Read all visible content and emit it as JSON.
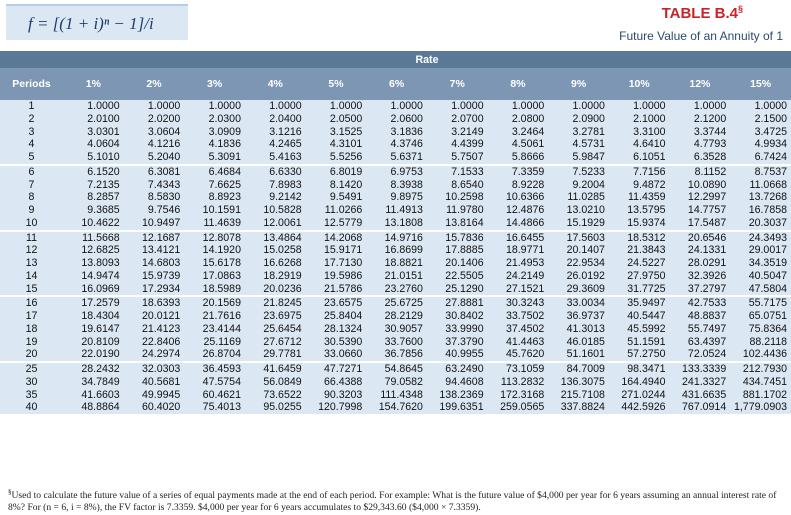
{
  "header": {
    "formula": "f = [(1 + i)ⁿ − 1]/i",
    "title": "TABLE B.4",
    "title_mark": "§",
    "subtitle": "Future Value of an Annuity of 1"
  },
  "table": {
    "group_header": "Rate",
    "columns": [
      "Periods",
      "1%",
      "2%",
      "3%",
      "4%",
      "5%",
      "6%",
      "7%",
      "8%",
      "9%",
      "10%",
      "12%",
      "15%"
    ],
    "rows": [
      [
        "1",
        "1.0000",
        "1.0000",
        "1.0000",
        "1.0000",
        "1.0000",
        "1.0000",
        "1.0000",
        "1.0000",
        "1.0000",
        "1.0000",
        "1.0000",
        "1.0000"
      ],
      [
        "2",
        "2.0100",
        "2.0200",
        "2.0300",
        "2.0400",
        "2.0500",
        "2.0600",
        "2.0700",
        "2.0800",
        "2.0900",
        "2.1000",
        "2.1200",
        "2.1500"
      ],
      [
        "3",
        "3.0301",
        "3.0604",
        "3.0909",
        "3.1216",
        "3.1525",
        "3.1836",
        "3.2149",
        "3.2464",
        "3.2781",
        "3.3100",
        "3.3744",
        "3.4725"
      ],
      [
        "4",
        "4.0604",
        "4.1216",
        "4.1836",
        "4.2465",
        "4.3101",
        "4.3746",
        "4.4399",
        "4.5061",
        "4.5731",
        "4.6410",
        "4.7793",
        "4.9934"
      ],
      [
        "5",
        "5.1010",
        "5.2040",
        "5.3091",
        "5.4163",
        "5.5256",
        "5.6371",
        "5.7507",
        "5.8666",
        "5.9847",
        "6.1051",
        "6.3528",
        "6.7424"
      ],
      [
        "6",
        "6.1520",
        "6.3081",
        "6.4684",
        "6.6330",
        "6.8019",
        "6.9753",
        "7.1533",
        "7.3359",
        "7.5233",
        "7.7156",
        "8.1152",
        "8.7537"
      ],
      [
        "7",
        "7.2135",
        "7.4343",
        "7.6625",
        "7.8983",
        "8.1420",
        "8.3938",
        "8.6540",
        "8.9228",
        "9.2004",
        "9.4872",
        "10.0890",
        "11.0668"
      ],
      [
        "8",
        "8.2857",
        "8.5830",
        "8.8923",
        "9.2142",
        "9.5491",
        "9.8975",
        "10.2598",
        "10.6366",
        "11.0285",
        "11.4359",
        "12.2997",
        "13.7268"
      ],
      [
        "9",
        "9.3685",
        "9.7546",
        "10.1591",
        "10.5828",
        "11.0266",
        "11.4913",
        "11.9780",
        "12.4876",
        "13.0210",
        "13.5795",
        "14.7757",
        "16.7858"
      ],
      [
        "10",
        "10.4622",
        "10.9497",
        "11.4639",
        "12.0061",
        "12.5779",
        "13.1808",
        "13.8164",
        "14.4866",
        "15.1929",
        "15.9374",
        "17.5487",
        "20.3037"
      ],
      [
        "11",
        "11.5668",
        "12.1687",
        "12.8078",
        "13.4864",
        "14.2068",
        "14.9716",
        "15.7836",
        "16.6455",
        "17.5603",
        "18.5312",
        "20.6546",
        "24.3493"
      ],
      [
        "12",
        "12.6825",
        "13.4121",
        "14.1920",
        "15.0258",
        "15.9171",
        "16.8699",
        "17.8885",
        "18.9771",
        "20.1407",
        "21.3843",
        "24.1331",
        "29.0017"
      ],
      [
        "13",
        "13.8093",
        "14.6803",
        "15.6178",
        "16.6268",
        "17.7130",
        "18.8821",
        "20.1406",
        "21.4953",
        "22.9534",
        "24.5227",
        "28.0291",
        "34.3519"
      ],
      [
        "14",
        "14.9474",
        "15.9739",
        "17.0863",
        "18.2919",
        "19.5986",
        "21.0151",
        "22.5505",
        "24.2149",
        "26.0192",
        "27.9750",
        "32.3926",
        "40.5047"
      ],
      [
        "15",
        "16.0969",
        "17.2934",
        "18.5989",
        "20.0236",
        "21.5786",
        "23.2760",
        "25.1290",
        "27.1521",
        "29.3609",
        "31.7725",
        "37.2797",
        "47.5804"
      ],
      [
        "16",
        "17.2579",
        "18.6393",
        "20.1569",
        "21.8245",
        "23.6575",
        "25.6725",
        "27.8881",
        "30.3243",
        "33.0034",
        "35.9497",
        "42.7533",
        "55.7175"
      ],
      [
        "17",
        "18.4304",
        "20.0121",
        "21.7616",
        "23.6975",
        "25.8404",
        "28.2129",
        "30.8402",
        "33.7502",
        "36.9737",
        "40.5447",
        "48.8837",
        "65.0751"
      ],
      [
        "18",
        "19.6147",
        "21.4123",
        "23.4144",
        "25.6454",
        "28.1324",
        "30.9057",
        "33.9990",
        "37.4502",
        "41.3013",
        "45.5992",
        "55.7497",
        "75.8364"
      ],
      [
        "19",
        "20.8109",
        "22.8406",
        "25.1169",
        "27.6712",
        "30.5390",
        "33.7600",
        "37.3790",
        "41.4463",
        "46.0185",
        "51.1591",
        "63.4397",
        "88.2118"
      ],
      [
        "20",
        "22.0190",
        "24.2974",
        "26.8704",
        "29.7781",
        "33.0660",
        "36.7856",
        "40.9955",
        "45.7620",
        "51.1601",
        "57.2750",
        "72.0524",
        "102.4436"
      ],
      [
        "25",
        "28.2432",
        "32.0303",
        "36.4593",
        "41.6459",
        "47.7271",
        "54.8645",
        "63.2490",
        "73.1059",
        "84.7009",
        "98.3471",
        "133.3339",
        "212.7930"
      ],
      [
        "30",
        "34.7849",
        "40.5681",
        "47.5754",
        "56.0849",
        "66.4388",
        "79.0582",
        "94.4608",
        "113.2832",
        "136.3075",
        "164.4940",
        "241.3327",
        "434.7451"
      ],
      [
        "35",
        "41.6603",
        "49.9945",
        "60.4621",
        "73.6522",
        "90.3203",
        "111.4348",
        "138.2369",
        "172.3168",
        "215.7108",
        "271.0244",
        "431.6635",
        "881.1702"
      ],
      [
        "40",
        "48.8864",
        "60.4020",
        "75.4013",
        "95.0255",
        "120.7998",
        "154.7620",
        "199.6351",
        "259.0565",
        "337.8824",
        "442.5926",
        "767.0914",
        "1,779.0903"
      ]
    ]
  },
  "footnote": {
    "mark": "§",
    "text": "Used to calculate the future value of a series of equal payments made at the end of each period. For example: What is the future value of $4,000 per year for 6 years assuming an annual interest rate of 8%? For (n = 6, i = 8%), the FV factor is 7.3359. $4,000 per year for 6 years accumulates to $29,343.60 ($4,000 × 7.3359)."
  }
}
